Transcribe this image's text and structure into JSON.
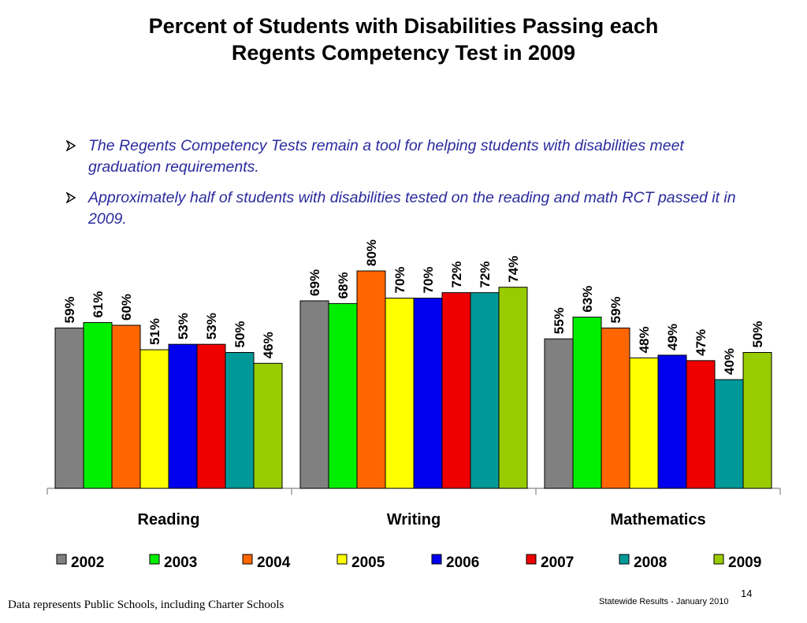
{
  "slide": {
    "title_line1": "Percent of Students with Disabilities Passing each",
    "title_line2": "Regents Competency Test in 2009",
    "bullets": [
      "The Regents Competency Tests remain a tool for helping students with disabilities  meet graduation requirements.",
      "Approximately half of students with disabilities tested on the reading and math RCT passed it in 2009."
    ],
    "footer_note": "Data represents Public Schools,  including Charter Schools",
    "footer_source": "Statewide Results - January 2010",
    "page_number": "14"
  },
  "chart_data": {
    "type": "bar",
    "categories": [
      "Reading",
      "Writing",
      "Mathematics"
    ],
    "series": [
      {
        "name": "2002",
        "color": "#808080",
        "values": [
          59,
          69,
          55
        ],
        "labels": [
          "59%",
          "69%",
          "55%"
        ]
      },
      {
        "name": "2003",
        "color": "#00ee00",
        "values": [
          61,
          68,
          63
        ],
        "labels": [
          "61%",
          "68%",
          "63%"
        ]
      },
      {
        "name": "2004",
        "color": "#ff6600",
        "values": [
          60,
          80,
          59
        ],
        "labels": [
          "60%",
          "80%",
          "59%"
        ]
      },
      {
        "name": "2005",
        "color": "#ffff00",
        "values": [
          51,
          70,
          48
        ],
        "labels": [
          "51%",
          "70%",
          "48%"
        ]
      },
      {
        "name": "2006",
        "color": "#0000ee",
        "values": [
          53,
          70,
          49
        ],
        "labels": [
          "53%",
          "70%",
          "49%"
        ]
      },
      {
        "name": "2007",
        "color": "#ee0000",
        "values": [
          53,
          72,
          47
        ],
        "labels": [
          "53%",
          "72%",
          "47%"
        ]
      },
      {
        "name": "2008",
        "color": "#009999",
        "values": [
          50,
          72,
          40
        ],
        "labels": [
          "50%",
          "72%",
          "40%"
        ]
      },
      {
        "name": "2009",
        "color": "#99cc00",
        "values": [
          46,
          74,
          50
        ],
        "labels": [
          "46%",
          "74%",
          "50%"
        ]
      }
    ],
    "ylim": [
      0,
      100
    ],
    "grid": false,
    "legend_position": "bottom"
  }
}
